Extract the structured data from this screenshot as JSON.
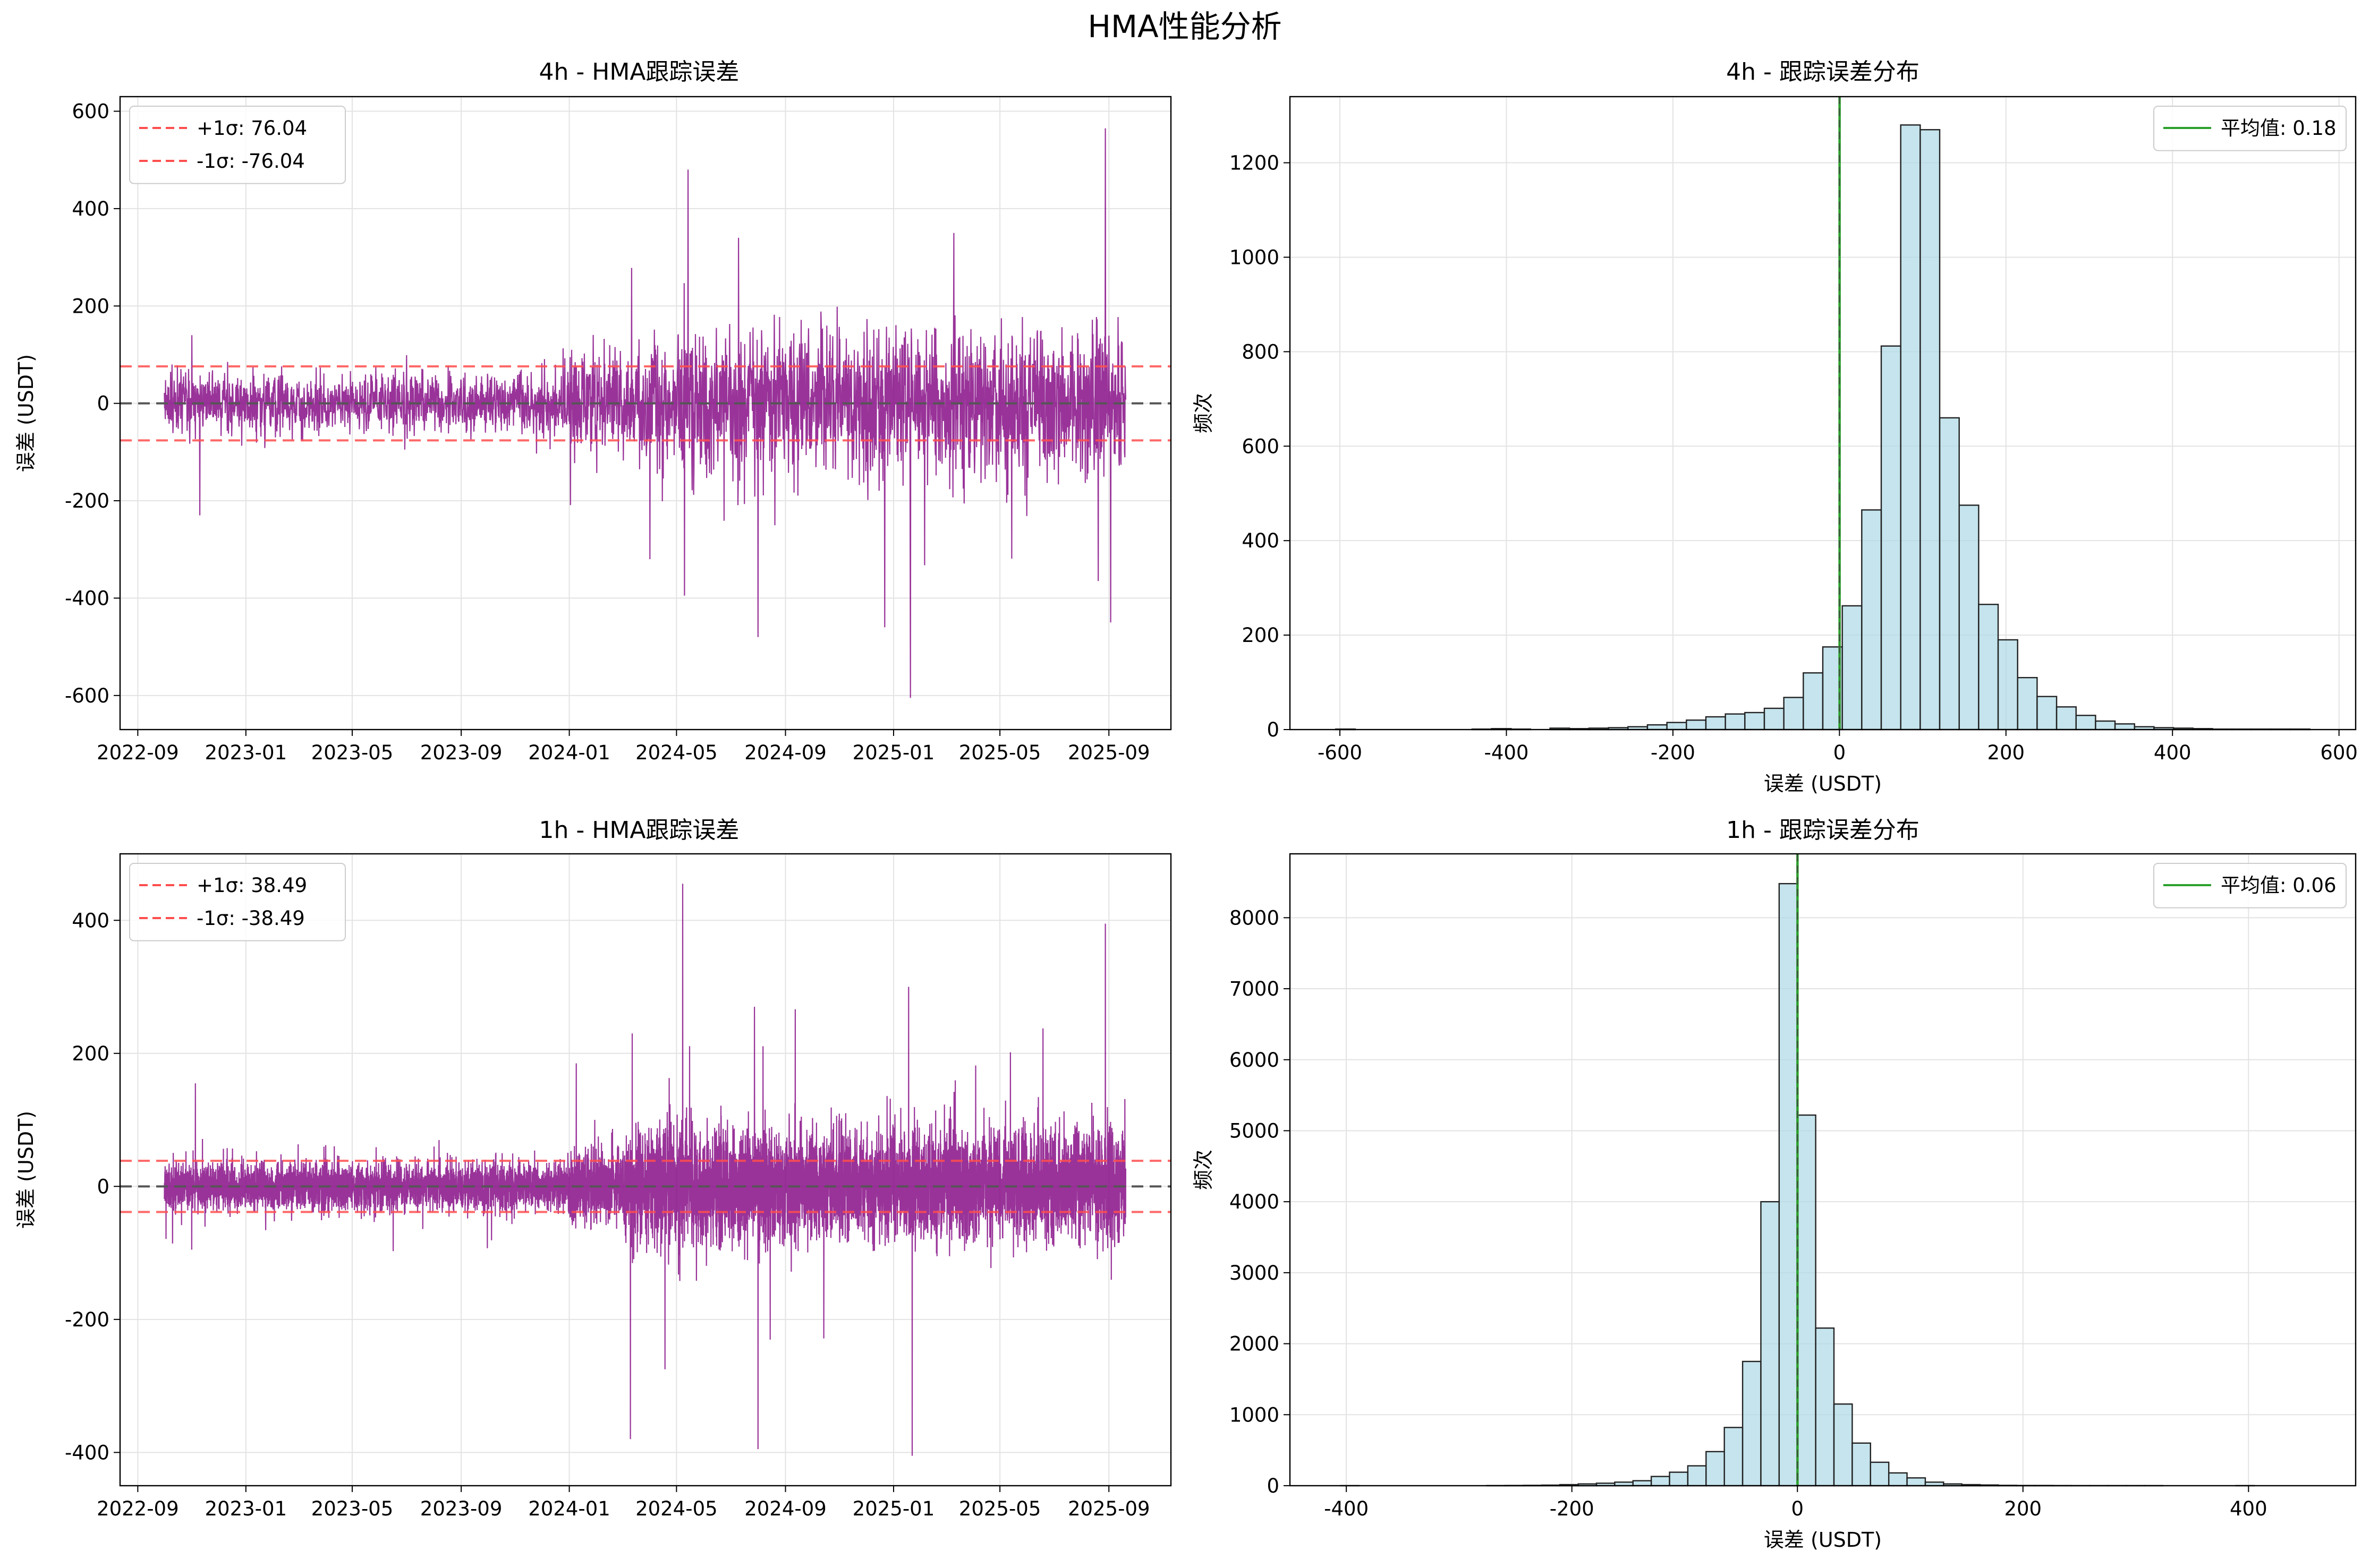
{
  "figure": {
    "title": "HMA性能分析"
  },
  "colors": {
    "error_line": "#800080",
    "sigma_line": "#ff4d4d",
    "zero_line": "#555555",
    "mean_line": "#2ca02c",
    "hist_fill": "#add8e6",
    "hist_edge": "#222222",
    "grid": "#e3e3e3"
  },
  "chart_data": [
    {
      "id": "ts_4h",
      "type": "line",
      "title": "4h - HMA跟踪误差",
      "xlabel": "",
      "ylabel": "误差 (USDT)",
      "x_start": "2022-10-01",
      "x_end": "2025-09-20",
      "xlim": [
        "2022-08-12",
        "2025-11-10"
      ],
      "ylim": [
        -670,
        630
      ],
      "xtick_labels": [
        "2022-09",
        "2023-01",
        "2023-05",
        "2023-09",
        "2024-01",
        "2024-05",
        "2024-09",
        "2025-01",
        "2025-05",
        "2025-09"
      ],
      "ytick_values": [
        -600,
        -400,
        -200,
        0,
        200,
        400,
        600
      ],
      "ytick_labels": [
        "-600",
        "-400",
        "-200",
        "0",
        "200",
        "400",
        "600"
      ],
      "sigma": 76.04,
      "volatility_regimes": [
        {
          "from": "2022-10-01",
          "to": "2023-12-31",
          "amplitude": 30
        },
        {
          "from": "2024-01-01",
          "to": "2024-03-31",
          "amplitude": 50
        },
        {
          "from": "2024-04-01",
          "to": "2025-09-20",
          "amplitude": 75
        }
      ],
      "spikes": [
        {
          "date": "2022-11-10",
          "value": -230
        },
        {
          "date": "2022-11-01",
          "value": 140
        },
        {
          "date": "2024-05-14",
          "value": 480
        },
        {
          "date": "2024-04-01",
          "value": -320
        },
        {
          "date": "2024-08-01",
          "value": -480
        },
        {
          "date": "2024-12-22",
          "value": -460
        },
        {
          "date": "2025-01-20",
          "value": -605
        },
        {
          "date": "2025-03-10",
          "value": 350
        },
        {
          "date": "2025-08-28",
          "value": 565
        },
        {
          "date": "2025-08-20",
          "value": -365
        },
        {
          "date": "2025-09-03",
          "value": -450
        },
        {
          "date": "2024-07-10",
          "value": 340
        }
      ],
      "legend": {
        "position": "upper-left",
        "entries": [
          "+1σ: 76.04",
          "-1σ: -76.04"
        ]
      }
    },
    {
      "id": "hist_4h",
      "type": "bar",
      "title": "4h - 跟踪误差分布",
      "xlabel": "误差 (USDT)",
      "ylabel": "频次",
      "xlim": [
        -660,
        620
      ],
      "ylim": [
        0,
        1340
      ],
      "xtick_values": [
        -600,
        -400,
        -200,
        0,
        200,
        400,
        600
      ],
      "xtick_labels": [
        "-600",
        "-400",
        "-200",
        "0",
        "200",
        "400",
        "600"
      ],
      "ytick_values": [
        0,
        200,
        400,
        600,
        800,
        1000,
        1200
      ],
      "ytick_labels": [
        "0",
        "200",
        "400",
        "600",
        "800",
        "1000",
        "1200"
      ],
      "bin_start": -605,
      "bin_width": 23.4,
      "counts": [
        1,
        0,
        0,
        0,
        0,
        0,
        0,
        1,
        2,
        1,
        0,
        3,
        2,
        3,
        4,
        6,
        10,
        15,
        20,
        27,
        33,
        36,
        45,
        68,
        120,
        175,
        262,
        465,
        812,
        1280,
        1270,
        660,
        475,
        265,
        190,
        110,
        70,
        48,
        30,
        18,
        12,
        6,
        4,
        3,
        2,
        1,
        1,
        1,
        1,
        1
      ],
      "mean": 0.18,
      "legend": {
        "position": "upper-right",
        "entries": [
          "平均值: 0.18"
        ]
      }
    },
    {
      "id": "ts_1h",
      "type": "line",
      "title": "1h - HMA跟踪误差",
      "xlabel": "",
      "ylabel": "误差 (USDT)",
      "x_start": "2022-10-01",
      "x_end": "2025-09-20",
      "xlim": [
        "2022-08-12",
        "2025-11-10"
      ],
      "ylim": [
        -450,
        500
      ],
      "xtick_labels": [
        "2022-09",
        "2023-01",
        "2023-05",
        "2023-09",
        "2024-01",
        "2024-05",
        "2024-09",
        "2025-01",
        "2025-05",
        "2025-09"
      ],
      "ytick_values": [
        -400,
        -200,
        0,
        200,
        400
      ],
      "ytick_labels": [
        "-400",
        "-200",
        "0",
        "200",
        "400"
      ],
      "sigma": 38.49,
      "volatility_regimes": [
        {
          "from": "2022-10-01",
          "to": "2023-12-31",
          "amplitude": 18
        },
        {
          "from": "2024-01-01",
          "to": "2024-02-28",
          "amplitude": 28
        },
        {
          "from": "2024-03-01",
          "to": "2025-09-20",
          "amplitude": 42
        }
      ],
      "spikes": [
        {
          "date": "2022-11-05",
          "value": 155
        },
        {
          "date": "2024-03-10",
          "value": -380
        },
        {
          "date": "2024-05-08",
          "value": 455
        },
        {
          "date": "2024-04-18",
          "value": -275
        },
        {
          "date": "2024-08-01",
          "value": -395
        },
        {
          "date": "2025-01-22",
          "value": -405
        },
        {
          "date": "2025-01-18",
          "value": 300
        },
        {
          "date": "2025-08-28",
          "value": 395
        },
        {
          "date": "2024-03-12",
          "value": 230
        },
        {
          "date": "2024-07-28",
          "value": 270
        }
      ],
      "legend": {
        "position": "upper-left",
        "entries": [
          "+1σ: 38.49",
          "-1σ: -38.49"
        ]
      }
    },
    {
      "id": "hist_1h",
      "type": "bar",
      "title": "1h - 跟踪误差分布",
      "xlabel": "误差 (USDT)",
      "ylabel": "频次",
      "xlim": [
        -450,
        495
      ],
      "ylim": [
        0,
        8900
      ],
      "xtick_values": [
        -400,
        -200,
        0,
        200,
        400
      ],
      "xtick_labels": [
        "-400",
        "-200",
        "0",
        "200",
        "400"
      ],
      "ytick_values": [
        0,
        1000,
        2000,
        3000,
        4000,
        5000,
        6000,
        7000,
        8000
      ],
      "ytick_labels": [
        "0",
        "1000",
        "2000",
        "3000",
        "4000",
        "5000",
        "6000",
        "7000",
        "8000"
      ],
      "bin_start": -405,
      "bin_width": 16.2,
      "counts": [
        1,
        0,
        0,
        0,
        0,
        0,
        0,
        0,
        2,
        3,
        5,
        8,
        15,
        25,
        35,
        50,
        70,
        130,
        190,
        280,
        480,
        820,
        1750,
        4000,
        8480,
        5220,
        2220,
        1150,
        600,
        330,
        180,
        110,
        50,
        25,
        15,
        10,
        5,
        3,
        3,
        2,
        1,
        1,
        1,
        1,
        1,
        0,
        0,
        0,
        0,
        1
      ],
      "mean": 0.06,
      "legend": {
        "position": "upper-right",
        "entries": [
          "平均值: 0.06"
        ]
      }
    }
  ]
}
